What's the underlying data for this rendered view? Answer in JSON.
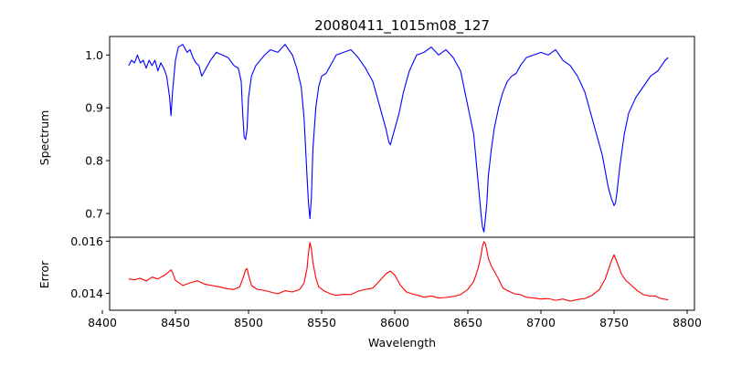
{
  "chart_data": [
    {
      "panel": "spectrum",
      "type": "line",
      "title": "20080411_1015m08_127",
      "xlabel": "",
      "ylabel": "Spectrum",
      "xlim": [
        8405,
        8805
      ],
      "ylim": [
        0.655,
        1.035
      ],
      "yticks": [
        0.7,
        0.8,
        0.9,
        1.0
      ],
      "ytick_labels": [
        "0.7",
        "0.8",
        "0.9",
        "1.0"
      ],
      "grid": false,
      "series": [
        {
          "color": "#0000ff",
          "x": [
            8418,
            8420,
            8422,
            8424,
            8426,
            8428,
            8430,
            8432,
            8434,
            8436,
            8438,
            8440,
            8442,
            8444,
            8445,
            8446,
            8447,
            8448,
            8450,
            8452,
            8455,
            8458,
            8460,
            8462,
            8464,
            8466,
            8468,
            8470,
            8474,
            8478,
            8482,
            8486,
            8490,
            8493,
            8495,
            8496,
            8497,
            8498,
            8499,
            8500,
            8502,
            8505,
            8508,
            8511,
            8515,
            8520,
            8525,
            8530,
            8533,
            8536,
            8538,
            8540,
            8541,
            8542,
            8543,
            8544,
            8546,
            8548,
            8550,
            8553,
            8556,
            8560,
            8565,
            8570,
            8575,
            8580,
            8585,
            8588,
            8591,
            8594,
            8596,
            8597,
            8598,
            8600,
            8603,
            8606,
            8610,
            8615,
            8620,
            8625,
            8630,
            8635,
            8640,
            8645,
            8648,
            8651,
            8654,
            8656,
            8658,
            8659,
            8660,
            8661,
            8662,
            8663,
            8664,
            8666,
            8668,
            8671,
            8674,
            8677,
            8680,
            8683,
            8686,
            8690,
            8695,
            8700,
            8705,
            8710,
            8715,
            8720,
            8725,
            8730,
            8733,
            8736,
            8739,
            8742,
            8744,
            8746,
            8748,
            8750,
            8751,
            8752,
            8754,
            8757,
            8760,
            8765,
            8770,
            8775,
            8780,
            8785,
            8787
          ],
          "y": [
            0.98,
            0.99,
            0.985,
            1.0,
            0.985,
            0.99,
            0.975,
            0.99,
            0.98,
            0.99,
            0.97,
            0.985,
            0.975,
            0.96,
            0.94,
            0.92,
            0.885,
            0.93,
            0.99,
            1.015,
            1.02,
            1.005,
            1.01,
            0.995,
            0.985,
            0.98,
            0.96,
            0.97,
            0.99,
            1.005,
            1.0,
            0.995,
            0.98,
            0.975,
            0.95,
            0.89,
            0.845,
            0.84,
            0.86,
            0.92,
            0.96,
            0.98,
            0.99,
            1.0,
            1.01,
            1.005,
            1.02,
            1.0,
            0.975,
            0.94,
            0.88,
            0.77,
            0.72,
            0.69,
            0.73,
            0.82,
            0.9,
            0.94,
            0.96,
            0.965,
            0.98,
            1.0,
            1.005,
            1.01,
            0.995,
            0.975,
            0.95,
            0.92,
            0.89,
            0.86,
            0.835,
            0.83,
            0.84,
            0.86,
            0.89,
            0.93,
            0.97,
            1.0,
            1.005,
            1.015,
            1.0,
            1.01,
            0.995,
            0.97,
            0.93,
            0.89,
            0.85,
            0.79,
            0.73,
            0.7,
            0.675,
            0.665,
            0.69,
            0.72,
            0.77,
            0.82,
            0.86,
            0.9,
            0.93,
            0.95,
            0.96,
            0.965,
            0.98,
            0.995,
            1.0,
            1.005,
            1.0,
            1.01,
            0.99,
            0.98,
            0.96,
            0.93,
            0.9,
            0.87,
            0.84,
            0.81,
            0.78,
            0.75,
            0.73,
            0.715,
            0.72,
            0.74,
            0.79,
            0.85,
            0.89,
            0.92,
            0.94,
            0.96,
            0.97,
            0.99,
            0.995
          ]
        }
      ]
    },
    {
      "panel": "error",
      "type": "line",
      "title": "",
      "xlabel": "Wavelength",
      "ylabel": "Error",
      "xlim": [
        8405,
        8805
      ],
      "ylim": [
        0.01335,
        0.01615
      ],
      "xticks": [
        8400,
        8450,
        8500,
        8550,
        8600,
        8650,
        8700,
        8750,
        8800
      ],
      "xtick_labels": [
        "8400",
        "8450",
        "8500",
        "8550",
        "8600",
        "8650",
        "8700",
        "8750",
        "8800"
      ],
      "yticks": [
        0.014,
        0.016
      ],
      "ytick_labels": [
        "0.014",
        "0.016"
      ],
      "grid": false,
      "series": [
        {
          "color": "#ff0000",
          "x": [
            8418,
            8422,
            8426,
            8430,
            8434,
            8438,
            8442,
            8444,
            8446,
            8447,
            8448,
            8450,
            8455,
            8460,
            8465,
            8470,
            8475,
            8480,
            8485,
            8490,
            8494,
            8496,
            8498,
            8499,
            8500,
            8502,
            8506,
            8510,
            8515,
            8520,
            8525,
            8530,
            8535,
            8538,
            8540,
            8541,
            8542,
            8543,
            8544,
            8546,
            8548,
            8552,
            8556,
            8560,
            8565,
            8570,
            8575,
            8580,
            8585,
            8590,
            8594,
            8597,
            8598,
            8600,
            8604,
            8608,
            8612,
            8616,
            8620,
            8625,
            8630,
            8635,
            8640,
            8645,
            8650,
            8654,
            8657,
            8659,
            8660,
            8661,
            8662,
            8663,
            8664,
            8666,
            8668,
            8671,
            8674,
            8678,
            8682,
            8686,
            8690,
            8695,
            8700,
            8705,
            8710,
            8715,
            8720,
            8725,
            8730,
            8735,
            8740,
            8744,
            8747,
            8749,
            8750,
            8752,
            8755,
            8758,
            8762,
            8766,
            8770,
            8774,
            8778,
            8782,
            8787
          ],
          "y": [
            0.01455,
            0.01452,
            0.01458,
            0.01447,
            0.01462,
            0.01455,
            0.01468,
            0.01475,
            0.01485,
            0.0149,
            0.0148,
            0.0145,
            0.0143,
            0.0144,
            0.01448,
            0.01435,
            0.0143,
            0.01425,
            0.01418,
            0.01415,
            0.01425,
            0.01455,
            0.0149,
            0.01495,
            0.0147,
            0.0143,
            0.01415,
            0.01412,
            0.01405,
            0.01398,
            0.0141,
            0.01405,
            0.01415,
            0.0144,
            0.01495,
            0.01555,
            0.01595,
            0.0157,
            0.0152,
            0.0146,
            0.01425,
            0.01408,
            0.01398,
            0.01392,
            0.01396,
            0.01395,
            0.01408,
            0.01415,
            0.0142,
            0.0145,
            0.01475,
            0.01485,
            0.0148,
            0.0147,
            0.0143,
            0.01405,
            0.01398,
            0.01392,
            0.01385,
            0.0139,
            0.01382,
            0.01384,
            0.01388,
            0.01395,
            0.01415,
            0.01445,
            0.01495,
            0.01545,
            0.0158,
            0.01598,
            0.0159,
            0.01565,
            0.01535,
            0.01505,
            0.01485,
            0.01455,
            0.0142,
            0.01408,
            0.01398,
            0.01395,
            0.01385,
            0.01382,
            0.01378,
            0.0138,
            0.01373,
            0.01378,
            0.0137,
            0.01376,
            0.0138,
            0.01392,
            0.01415,
            0.01455,
            0.01505,
            0.01535,
            0.01548,
            0.0152,
            0.01475,
            0.0145,
            0.0143,
            0.0141,
            0.01395,
            0.0139,
            0.0139,
            0.0138,
            0.01375
          ]
        }
      ]
    }
  ]
}
